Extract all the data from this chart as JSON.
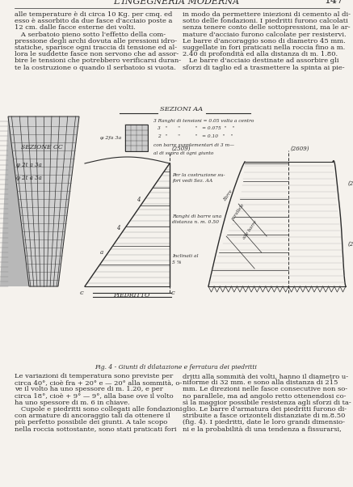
{
  "page_title": "L'INGEGNERIA MODERNA",
  "page_number": "147",
  "background_color": "#f5f2ed",
  "text_color": "#2a2a2a",
  "fig_caption": "Fig. 4 - Giunti di dilatazione e ferratura dei piedritti",
  "left_lines": [
    "alle temperature è di circa 10 Kg. per cmq. ed",
    "esso è assorbito da due fasce d'acciaio poste a",
    "12 cm. dalle facce esterne dei volti.",
    "   A serbatoio pieno sotto l'effetto della com-",
    "pressione degli archi dovuta alle pressioni idro-",
    "statiche, sparisce ogni traccia di tensione ed al-",
    "lora le suddette fasce non servono che ad assor-",
    "bire le tensioni che potrebbero verificarsi duran-",
    "te la costruzione o quando il serbatoio si vuota."
  ],
  "right_lines": [
    "in modo da permettere iniezioni di cemento al di-",
    "sotto delle fondazioni. I piedritti furono calcolati",
    "senza tenere conto delle sottopressioni, ma le ar-",
    "mature d'acciaio furono calcolate per resistervi.",
    "Le barre d'ancoraggio sono di diametro 45 mm.",
    "suggellate in fori praticati nella roccia fino a m.",
    "2.40 di profondità ed alla distanza di m. 1.80.",
    "   Le barre d'acciaio destinate ad assorbire gli",
    "sforzi di taglio ed a trasmettere la spinta ai pie-"
  ],
  "bottom_left": [
    "Le variazioni di temperatura sono previste per",
    "circa 40°, cioè fra + 20° e — 20° alla sommità, o-",
    "ve il volto ha uno spessore di m. 1.20, e per",
    "circa 18°, cioè + 9° — 9°, alla base ove il volto",
    "ha uno spessore di m. 6 in chiave.",
    "   Cupole e piedritti sono collegati alle fondazioni",
    "con armature di ancoraggio tali da ottenere il",
    "più perfetto possibile dei giunti. A tale scopo",
    "nella roccia sottostante, sono stati praticati fori"
  ],
  "bottom_right": [
    "dritti alla sommità dei volti, hanno il diametro u-",
    "niforme di 32 mm. e sono alla distanza di 215",
    "mm. Le direzioni nelle fasce consecutive non so-",
    "no parallele, ma ad angolo retto ottenendosi co-",
    "sì la maggior possibile resistenza agli sforzi di ta-",
    "glio. Le barre d'armatura dei piedritti furono di-",
    "stribuite a fasce orizonteli distanziate di m.8.50",
    "(fig. 4). I piedritti, date le loro grandi dimensio-",
    "ni e la probabilità di una tendenza a fissurarsi,"
  ]
}
